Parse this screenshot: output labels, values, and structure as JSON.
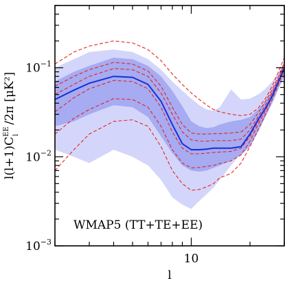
{
  "chart_data": {
    "type": "line",
    "xlabel": "l",
    "ylabel_parts": {
      "pre": "l(l+1)C",
      "sup": "EE",
      "sub": "l",
      "post": " /2π  [μK²]"
    },
    "annotation": "WMAP5 (TT+TE+EE)",
    "xscale": "log",
    "yscale": "log",
    "xlim": [
      2,
      30
    ],
    "ylim": [
      0.001,
      0.5
    ],
    "x_ticks": [
      {
        "value": 10,
        "label": "10"
      }
    ],
    "y_ticks": [
      {
        "value": 0.001,
        "base": "10",
        "exp": "−3"
      },
      {
        "value": 0.01,
        "base": "10",
        "exp": "−2"
      },
      {
        "value": 0.1,
        "base": "10",
        "exp": "−1"
      }
    ],
    "grid": false,
    "colors": {
      "outer_band": "#d3d6fa",
      "inner_band": "#a6abf2",
      "median": "#1530d8",
      "dashed": "#e8201c",
      "axes": "#000000"
    },
    "x": [
      2,
      2.5,
      3,
      4,
      5,
      6,
      7,
      8,
      9,
      10,
      11,
      12,
      13,
      14,
      16,
      18,
      20,
      22,
      24,
      26,
      28,
      30
    ],
    "bands": [
      {
        "name": "outer",
        "low": [
          0.012,
          0.01,
          0.0085,
          0.012,
          0.01,
          0.008,
          0.0055,
          0.0035,
          0.0029,
          0.0026,
          0.0032,
          0.0038,
          0.0045,
          0.0055,
          0.008,
          0.011,
          0.016,
          0.025,
          0.038,
          0.052,
          0.07,
          0.09
        ],
        "high": [
          0.1,
          0.125,
          0.15,
          0.16,
          0.15,
          0.125,
          0.095,
          0.07,
          0.055,
          0.045,
          0.038,
          0.034,
          0.033,
          0.036,
          0.057,
          0.044,
          0.045,
          0.05,
          0.058,
          0.07,
          0.09,
          0.115
        ]
      },
      {
        "name": "inner",
        "low": [
          0.022,
          0.025,
          0.03,
          0.038,
          0.036,
          0.028,
          0.017,
          0.011,
          0.008,
          0.007,
          0.0068,
          0.007,
          0.0075,
          0.008,
          0.009,
          0.0105,
          0.013,
          0.019,
          0.028,
          0.04,
          0.058,
          0.08
        ],
        "high": [
          0.07,
          0.09,
          0.105,
          0.13,
          0.125,
          0.105,
          0.08,
          0.055,
          0.037,
          0.025,
          0.022,
          0.021,
          0.0215,
          0.023,
          0.025,
          0.026,
          0.028,
          0.034,
          0.042,
          0.056,
          0.075,
          0.1
        ]
      }
    ],
    "series": [
      {
        "style": "solid",
        "values": [
          0.044,
          0.056,
          0.067,
          0.08,
          0.078,
          0.065,
          0.042,
          0.023,
          0.014,
          0.012,
          0.012,
          0.0122,
          0.0125,
          0.0125,
          0.0125,
          0.013,
          0.018,
          0.026,
          0.035,
          0.048,
          0.07,
          0.1
        ]
      },
      {
        "style": "dashed",
        "values": [
          0.007,
          0.012,
          0.018,
          0.025,
          0.026,
          0.022,
          0.013,
          0.007,
          0.005,
          0.0042,
          0.0043,
          0.0046,
          0.005,
          0.0058,
          0.0065,
          0.0085,
          0.013,
          0.02,
          0.03,
          0.044,
          0.065,
          0.095
        ]
      },
      {
        "style": "dashed",
        "values": [
          0.018,
          0.027,
          0.034,
          0.045,
          0.044,
          0.036,
          0.022,
          0.012,
          0.0085,
          0.0075,
          0.0076,
          0.0078,
          0.008,
          0.0084,
          0.009,
          0.0105,
          0.015,
          0.023,
          0.033,
          0.047,
          0.068,
          0.1
        ]
      },
      {
        "style": "dashed",
        "values": [
          0.032,
          0.046,
          0.058,
          0.072,
          0.07,
          0.058,
          0.036,
          0.019,
          0.0125,
          0.0108,
          0.0108,
          0.011,
          0.0112,
          0.0113,
          0.0115,
          0.0125,
          0.017,
          0.025,
          0.035,
          0.05,
          0.072,
          0.105
        ]
      },
      {
        "style": "dashed",
        "values": [
          0.05,
          0.065,
          0.08,
          0.098,
          0.095,
          0.08,
          0.052,
          0.03,
          0.019,
          0.0155,
          0.015,
          0.015,
          0.0152,
          0.0152,
          0.0152,
          0.0158,
          0.02,
          0.028,
          0.038,
          0.053,
          0.076,
          0.11
        ]
      },
      {
        "style": "dashed",
        "values": [
          0.062,
          0.08,
          0.095,
          0.115,
          0.11,
          0.092,
          0.062,
          0.036,
          0.023,
          0.0185,
          0.018,
          0.018,
          0.0182,
          0.0182,
          0.0185,
          0.019,
          0.023,
          0.031,
          0.042,
          0.057,
          0.08,
          0.115
        ]
      },
      {
        "style": "dashed",
        "values": [
          0.11,
          0.15,
          0.175,
          0.2,
          0.19,
          0.16,
          0.12,
          0.085,
          0.065,
          0.052,
          0.044,
          0.038,
          0.034,
          0.032,
          0.03,
          0.029,
          0.03,
          0.035,
          0.045,
          0.062,
          0.09,
          0.13
        ]
      }
    ]
  }
}
